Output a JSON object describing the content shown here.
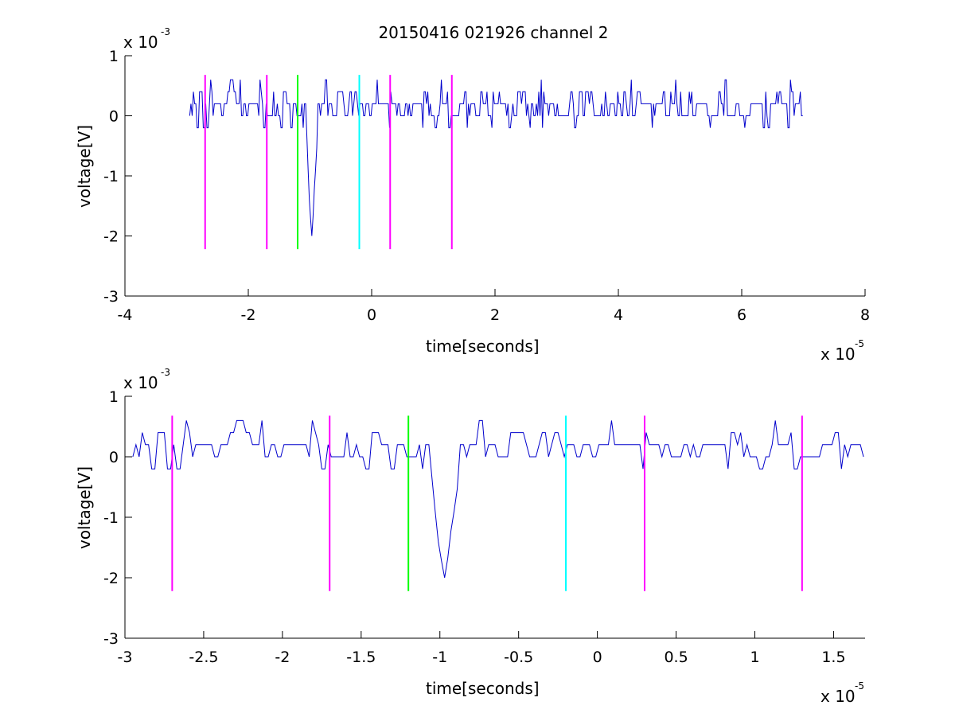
{
  "figure_title": "20150416 021926 channel 2",
  "colors": {
    "signal": "#0000cc",
    "magenta": "#ff00ff",
    "green": "#00ff00",
    "cyan": "#00ffff",
    "axes": "#000000"
  },
  "chart_data": [
    {
      "type": "line",
      "title": "20150416 021926 channel 2",
      "xlabel": "time[seconds]",
      "ylabel": "voltage[V]",
      "x_multiplier": "x 10",
      "x_exponent": "-5",
      "y_multiplier": "x 10",
      "y_exponent": "-3",
      "xlim": [
        -4,
        8
      ],
      "ylim": [
        -3,
        1
      ],
      "xticks": [
        -4,
        -2,
        0,
        2,
        4,
        6,
        8
      ],
      "xtick_labels": [
        "-4",
        "-2",
        "0",
        "2",
        "4",
        "6",
        "8"
      ],
      "yticks": [
        -3,
        -2,
        -1,
        0,
        1
      ],
      "ytick_labels": [
        "-3",
        "-2",
        "-1",
        "0",
        "1"
      ],
      "grid": false,
      "series": [
        {
          "color": "#0000cc",
          "x_range": [
            -2.95,
            7.0
          ],
          "baseline": 0.1,
          "spike": {
            "x": -0.97,
            "y": -2.0
          }
        }
      ],
      "markers": [
        {
          "x": -2.7,
          "color": "#ff00ff",
          "y_top": 0.68,
          "y_bottom": -2.22
        },
        {
          "x": -1.7,
          "color": "#ff00ff",
          "y_top": 0.68,
          "y_bottom": -2.22
        },
        {
          "x": -1.2,
          "color": "#00ff00",
          "y_top": 0.68,
          "y_bottom": -2.22
        },
        {
          "x": -0.2,
          "color": "#00ffff",
          "y_top": 0.68,
          "y_bottom": -2.22
        },
        {
          "x": 0.3,
          "color": "#ff00ff",
          "y_top": 0.68,
          "y_bottom": -2.22
        },
        {
          "x": 1.3,
          "color": "#ff00ff",
          "y_top": 0.68,
          "y_bottom": -2.22
        }
      ]
    },
    {
      "type": "line",
      "title": "",
      "xlabel": "time[seconds]",
      "ylabel": "voltage[V]",
      "x_multiplier": "x 10",
      "x_exponent": "-5",
      "y_multiplier": "x 10",
      "y_exponent": "-3",
      "xlim": [
        -3.0,
        1.7
      ],
      "ylim": [
        -3,
        1
      ],
      "xticks": [
        -3,
        -2.5,
        -2,
        -1.5,
        -1,
        -0.5,
        0,
        0.5,
        1,
        1.5
      ],
      "xtick_labels": [
        "-3",
        "-2.5",
        "-2",
        "-1.5",
        "-1",
        "-0.5",
        "0",
        "0.5",
        "1",
        "1.5"
      ],
      "yticks": [
        -3,
        -2,
        -1,
        0,
        1
      ],
      "ytick_labels": [
        "-3",
        "-2",
        "-1",
        "0",
        "1"
      ],
      "grid": false,
      "series": [
        {
          "color": "#0000cc",
          "x_range": [
            -2.95,
            1.7
          ],
          "baseline": 0.1,
          "spike": {
            "x": -0.97,
            "y": -2.0
          }
        }
      ],
      "markers": [
        {
          "x": -2.7,
          "color": "#ff00ff",
          "y_top": 0.68,
          "y_bottom": -2.22
        },
        {
          "x": -1.7,
          "color": "#ff00ff",
          "y_top": 0.68,
          "y_bottom": -2.22
        },
        {
          "x": -1.2,
          "color": "#00ff00",
          "y_top": 0.68,
          "y_bottom": -2.22
        },
        {
          "x": -0.2,
          "color": "#00ffff",
          "y_top": 0.68,
          "y_bottom": -2.22
        },
        {
          "x": 0.3,
          "color": "#ff00ff",
          "y_top": 0.68,
          "y_bottom": -2.22
        },
        {
          "x": 1.3,
          "color": "#ff00ff",
          "y_top": 0.68,
          "y_bottom": -2.22
        }
      ]
    }
  ]
}
